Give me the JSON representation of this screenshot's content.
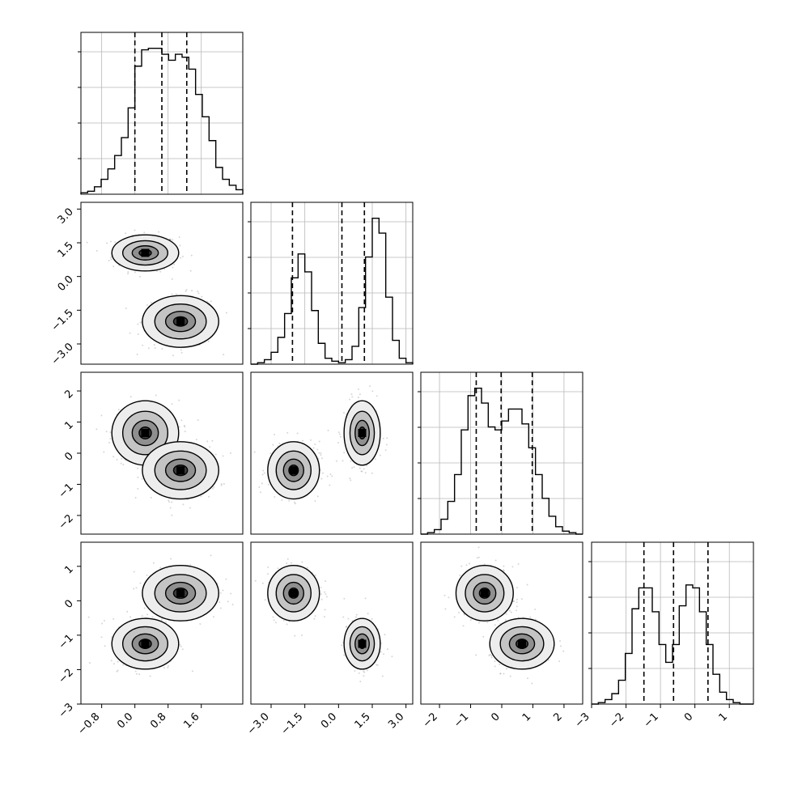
{
  "chart_data": {
    "type": "corner-plot",
    "grid": true,
    "variables": 4,
    "histogram_quantile_lines": [
      [
        0.0,
        0.65,
        1.25
      ],
      [
        -2.05,
        0.15,
        1.15
      ],
      [
        -0.82,
        -0.02,
        0.98
      ],
      [
        -1.48,
        -0.62,
        0.38
      ]
    ],
    "axis_ranges": [
      [
        -1.3,
        2.6
      ],
      [
        -3.9,
        3.3
      ],
      [
        -2.6,
        2.6
      ],
      [
        -3.0,
        1.7
      ]
    ],
    "tick_labels": {
      "x": [
        [
          "−0.8",
          "0.0",
          "0.8",
          "1.6"
        ],
        [
          "−3.0",
          "−1.5",
          "0.0",
          "1.5",
          "3.0"
        ],
        [
          "−2",
          "−1",
          "0",
          "1",
          "2"
        ],
        [
          "−3",
          "−2",
          "−1",
          "0",
          "1"
        ]
      ],
      "y": [
        [
          "3.0",
          "1.5",
          "0.0",
          "−1.5",
          "−3.0"
        ],
        [
          "2",
          "1",
          "0",
          "−1",
          "−2"
        ],
        [
          "1",
          "0",
          "−1",
          "−2",
          "−3"
        ]
      ]
    },
    "histograms": [
      [
        0.01,
        0.02,
        0.05,
        0.1,
        0.17,
        0.26,
        0.38,
        0.58,
        0.86,
        0.97,
        0.98,
        0.98,
        0.94,
        0.9,
        0.94,
        0.92,
        0.84,
        0.67,
        0.52,
        0.36,
        0.18,
        0.1,
        0.06,
        0.03
      ],
      [
        0.0,
        0.01,
        0.03,
        0.08,
        0.18,
        0.34,
        0.58,
        0.74,
        0.62,
        0.36,
        0.14,
        0.04,
        0.02,
        0.01,
        0.03,
        0.12,
        0.38,
        0.72,
        0.98,
        0.88,
        0.45,
        0.16,
        0.04,
        0.01
      ],
      [
        0.0,
        0.01,
        0.03,
        0.1,
        0.22,
        0.4,
        0.7,
        0.93,
        0.98,
        0.88,
        0.72,
        0.7,
        0.76,
        0.84,
        0.84,
        0.74,
        0.58,
        0.4,
        0.24,
        0.12,
        0.05,
        0.02,
        0.01,
        0.0
      ],
      [
        0.0,
        0.01,
        0.03,
        0.07,
        0.16,
        0.34,
        0.64,
        0.78,
        0.78,
        0.62,
        0.4,
        0.28,
        0.4,
        0.66,
        0.8,
        0.78,
        0.62,
        0.4,
        0.2,
        0.08,
        0.03,
        0.01,
        0.0,
        0.0
      ]
    ],
    "clusters": [
      {
        "centers": [
          0.25,
          1.05,
          0.65,
          -1.25
        ],
        "sd": [
          0.35,
          0.35,
          0.45,
          0.32
        ]
      },
      {
        "centers": [
          1.1,
          -2.0,
          -0.55,
          0.22
        ],
        "sd": [
          0.4,
          0.5,
          0.4,
          0.35
        ]
      }
    ]
  }
}
